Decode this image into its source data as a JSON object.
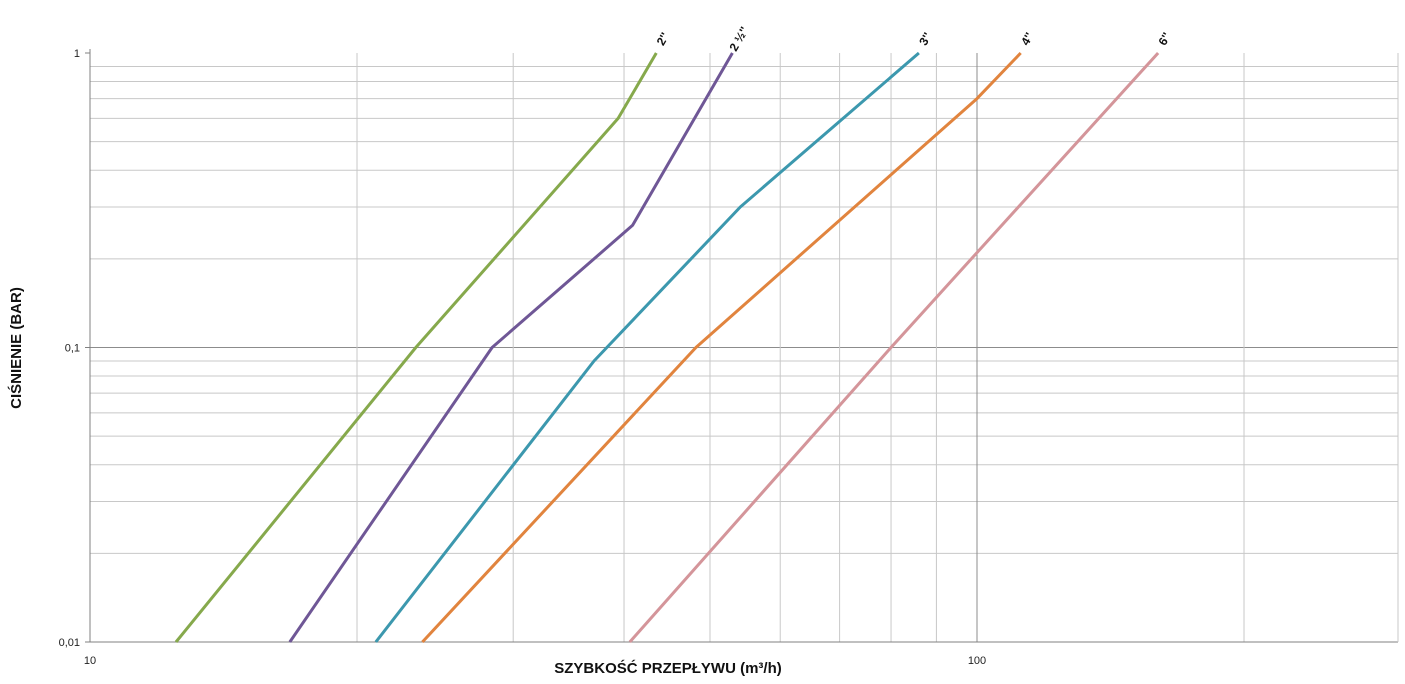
{
  "chart_data": {
    "type": "line",
    "xlabel": "SZYBKOŚĆ PRZEPŁYWU    (m³/h)",
    "ylabel": "CIŚNIENIE (BAR)",
    "x_scale": "log",
    "y_scale": "log",
    "xlim": [
      10,
      500
    ],
    "ylim": [
      0.01,
      1
    ],
    "grid": true,
    "x_tick_labels": [
      {
        "value": 10,
        "label": "10"
      },
      {
        "value": 100,
        "label": "100"
      }
    ],
    "y_tick_labels": [
      {
        "value": 0.01,
        "label": "0,01"
      },
      {
        "value": 0.1,
        "label": "0,1"
      },
      {
        "value": 1,
        "label": "1"
      }
    ],
    "series": [
      {
        "name": "2''",
        "color": "#86a94c",
        "points": [
          [
            12.5,
            0.01
          ],
          [
            23.3,
            0.1
          ],
          [
            39.4,
            0.6
          ],
          [
            43.5,
            1.0
          ]
        ]
      },
      {
        "name": "2 ½''",
        "color": "#6f5796",
        "points": [
          [
            16.8,
            0.01
          ],
          [
            28.4,
            0.1
          ],
          [
            40.9,
            0.26
          ],
          [
            53.0,
            1.0
          ]
        ]
      },
      {
        "name": "3''",
        "color": "#3c98ae",
        "points": [
          [
            21.0,
            0.01
          ],
          [
            37.0,
            0.09
          ],
          [
            54.1,
            0.3
          ],
          [
            86.0,
            1.0
          ]
        ]
      },
      {
        "name": "4''",
        "color": "#e1843e",
        "points": [
          [
            23.7,
            0.01
          ],
          [
            48.2,
            0.1
          ],
          [
            100.0,
            0.7
          ],
          [
            112.0,
            1.0
          ]
        ]
      },
      {
        "name": "6''",
        "color": "#d4959a",
        "points": [
          [
            40.6,
            0.01
          ],
          [
            80.0,
            0.1
          ],
          [
            100.0,
            0.21
          ],
          [
            160.0,
            1.0
          ]
        ]
      }
    ]
  }
}
